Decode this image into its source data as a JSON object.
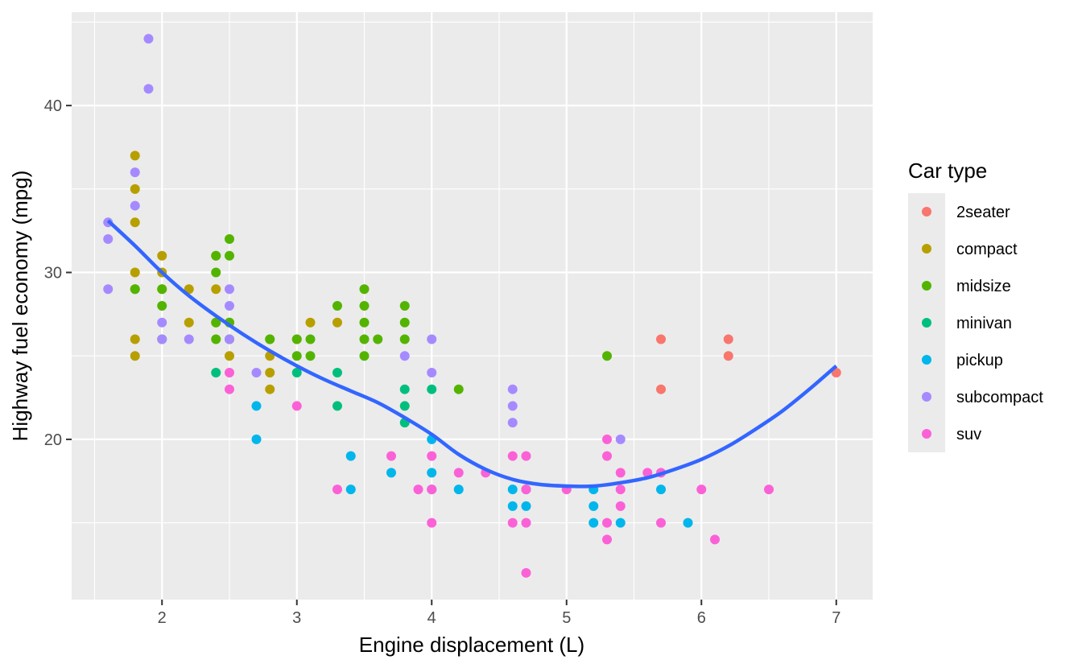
{
  "chart_data": {
    "type": "scatter",
    "xlabel": "Engine displacement (L)",
    "ylabel": "Highway fuel economy (mpg)",
    "xlim": [
      1.33,
      7.27
    ],
    "ylim": [
      10.4,
      45.6
    ],
    "x_ticks": [
      2,
      3,
      4,
      5,
      6,
      7
    ],
    "y_ticks": [
      20,
      30,
      40
    ],
    "x_tick_labels": [
      "2",
      "3",
      "4",
      "5",
      "6",
      "7"
    ],
    "y_tick_labels": [
      "20",
      "30",
      "40"
    ],
    "grid": true,
    "legend": {
      "title": "Car type",
      "placement": "right",
      "entries": [
        {
          "label": "2seater",
          "color": "#F8766D"
        },
        {
          "label": "compact",
          "color": "#B79F00"
        },
        {
          "label": "midsize",
          "color": "#53B400"
        },
        {
          "label": "minivan",
          "color": "#00BF7D"
        },
        {
          "label": "pickup",
          "color": "#00B6EB"
        },
        {
          "label": "subcompact",
          "color": "#A58AFF"
        },
        {
          "label": "suv",
          "color": "#FB61D7"
        }
      ]
    },
    "series": [
      {
        "name": "2seater",
        "color": "#F8766D",
        "points": [
          [
            5.7,
            26
          ],
          [
            5.7,
            23
          ],
          [
            6.2,
            26
          ],
          [
            6.2,
            25
          ],
          [
            7.0,
            24
          ]
        ]
      },
      {
        "name": "compact",
        "color": "#B79F00",
        "points": [
          [
            1.8,
            37
          ],
          [
            1.8,
            35
          ],
          [
            1.8,
            33
          ],
          [
            1.8,
            30
          ],
          [
            1.8,
            29
          ],
          [
            1.8,
            26
          ],
          [
            1.8,
            25
          ],
          [
            2.0,
            31
          ],
          [
            2.0,
            30
          ],
          [
            2.0,
            29
          ],
          [
            2.2,
            29
          ],
          [
            2.2,
            27
          ],
          [
            2.4,
            31
          ],
          [
            2.4,
            29
          ],
          [
            2.4,
            27
          ],
          [
            2.5,
            27
          ],
          [
            2.5,
            25
          ],
          [
            2.8,
            26
          ],
          [
            2.8,
            25
          ],
          [
            2.8,
            24
          ],
          [
            2.8,
            23
          ],
          [
            3.0,
            26
          ],
          [
            3.1,
            27
          ],
          [
            3.3,
            27
          ]
        ]
      },
      {
        "name": "midsize",
        "color": "#53B400",
        "points": [
          [
            1.8,
            29
          ],
          [
            2.0,
            29
          ],
          [
            2.0,
            28
          ],
          [
            2.0,
            26
          ],
          [
            2.4,
            31
          ],
          [
            2.4,
            30
          ],
          [
            2.4,
            27
          ],
          [
            2.4,
            26
          ],
          [
            2.5,
            32
          ],
          [
            2.5,
            31
          ],
          [
            2.5,
            27
          ],
          [
            2.5,
            26
          ],
          [
            2.8,
            26
          ],
          [
            3.0,
            26
          ],
          [
            3.0,
            25
          ],
          [
            3.1,
            26
          ],
          [
            3.1,
            25
          ],
          [
            3.3,
            28
          ],
          [
            3.5,
            29
          ],
          [
            3.5,
            28
          ],
          [
            3.5,
            27
          ],
          [
            3.5,
            26
          ],
          [
            3.5,
            25
          ],
          [
            3.6,
            26
          ],
          [
            3.8,
            28
          ],
          [
            3.8,
            27
          ],
          [
            3.8,
            26
          ],
          [
            4.2,
            23
          ],
          [
            5.3,
            25
          ]
        ]
      },
      {
        "name": "minivan",
        "color": "#00BF7D",
        "points": [
          [
            2.4,
            24
          ],
          [
            3.0,
            24
          ],
          [
            3.3,
            24
          ],
          [
            3.3,
            22
          ],
          [
            3.8,
            23
          ],
          [
            3.8,
            22
          ],
          [
            3.8,
            21
          ],
          [
            4.0,
            23
          ]
        ]
      },
      {
        "name": "pickup",
        "color": "#00B6EB",
        "points": [
          [
            2.7,
            22
          ],
          [
            2.7,
            20
          ],
          [
            3.4,
            19
          ],
          [
            3.4,
            17
          ],
          [
            3.7,
            18
          ],
          [
            4.0,
            20
          ],
          [
            4.0,
            18
          ],
          [
            4.0,
            17
          ],
          [
            4.2,
            17
          ],
          [
            4.6,
            17
          ],
          [
            4.6,
            16
          ],
          [
            4.7,
            17
          ],
          [
            4.7,
            16
          ],
          [
            5.2,
            17
          ],
          [
            5.2,
            16
          ],
          [
            5.2,
            15
          ],
          [
            5.4,
            15
          ],
          [
            5.7,
            17
          ],
          [
            5.9,
            15
          ]
        ]
      },
      {
        "name": "subcompact",
        "color": "#A58AFF",
        "points": [
          [
            1.6,
            33
          ],
          [
            1.6,
            32
          ],
          [
            1.6,
            29
          ],
          [
            1.8,
            36
          ],
          [
            1.8,
            34
          ],
          [
            1.9,
            44
          ],
          [
            1.9,
            41
          ],
          [
            2.0,
            27
          ],
          [
            2.0,
            26
          ],
          [
            2.2,
            26
          ],
          [
            2.5,
            29
          ],
          [
            2.5,
            28
          ],
          [
            2.5,
            26
          ],
          [
            2.7,
            24
          ],
          [
            3.8,
            25
          ],
          [
            4.0,
            26
          ],
          [
            4.0,
            24
          ],
          [
            4.6,
            23
          ],
          [
            4.6,
            22
          ],
          [
            4.6,
            21
          ],
          [
            5.4,
            20
          ]
        ]
      },
      {
        "name": "suv",
        "color": "#FB61D7",
        "points": [
          [
            2.5,
            24
          ],
          [
            2.5,
            23
          ],
          [
            3.0,
            22
          ],
          [
            3.3,
            17
          ],
          [
            3.7,
            19
          ],
          [
            3.9,
            17
          ],
          [
            4.0,
            19
          ],
          [
            4.0,
            17
          ],
          [
            4.0,
            15
          ],
          [
            4.2,
            18
          ],
          [
            4.4,
            18
          ],
          [
            4.6,
            19
          ],
          [
            4.6,
            15
          ],
          [
            4.7,
            19
          ],
          [
            4.7,
            17
          ],
          [
            4.7,
            15
          ],
          [
            4.7,
            12
          ],
          [
            5.0,
            17
          ],
          [
            5.3,
            20
          ],
          [
            5.3,
            19
          ],
          [
            5.3,
            15
          ],
          [
            5.3,
            14
          ],
          [
            5.4,
            18
          ],
          [
            5.4,
            17
          ],
          [
            5.4,
            16
          ],
          [
            5.6,
            18
          ],
          [
            5.7,
            18
          ],
          [
            5.7,
            15
          ],
          [
            6.0,
            17
          ],
          [
            6.1,
            14
          ],
          [
            6.5,
            17
          ]
        ]
      }
    ],
    "trend": {
      "type": "loess",
      "color": "#3366FF",
      "points": [
        [
          1.6,
          33.1
        ],
        [
          1.8,
          31.6
        ],
        [
          2.0,
          30.0
        ],
        [
          2.2,
          28.6
        ],
        [
          2.4,
          27.4
        ],
        [
          2.6,
          26.3
        ],
        [
          2.8,
          25.3
        ],
        [
          3.0,
          24.4
        ],
        [
          3.2,
          23.6
        ],
        [
          3.4,
          22.9
        ],
        [
          3.6,
          22.2
        ],
        [
          3.8,
          21.3
        ],
        [
          4.0,
          20.3
        ],
        [
          4.2,
          19.1
        ],
        [
          4.4,
          18.2
        ],
        [
          4.6,
          17.6
        ],
        [
          4.8,
          17.3
        ],
        [
          5.0,
          17.2
        ],
        [
          5.2,
          17.2
        ],
        [
          5.4,
          17.4
        ],
        [
          5.6,
          17.7
        ],
        [
          5.8,
          18.2
        ],
        [
          6.0,
          18.8
        ],
        [
          6.2,
          19.6
        ],
        [
          6.4,
          20.6
        ],
        [
          6.6,
          21.7
        ],
        [
          6.8,
          23.0
        ],
        [
          7.0,
          24.4
        ]
      ]
    }
  }
}
